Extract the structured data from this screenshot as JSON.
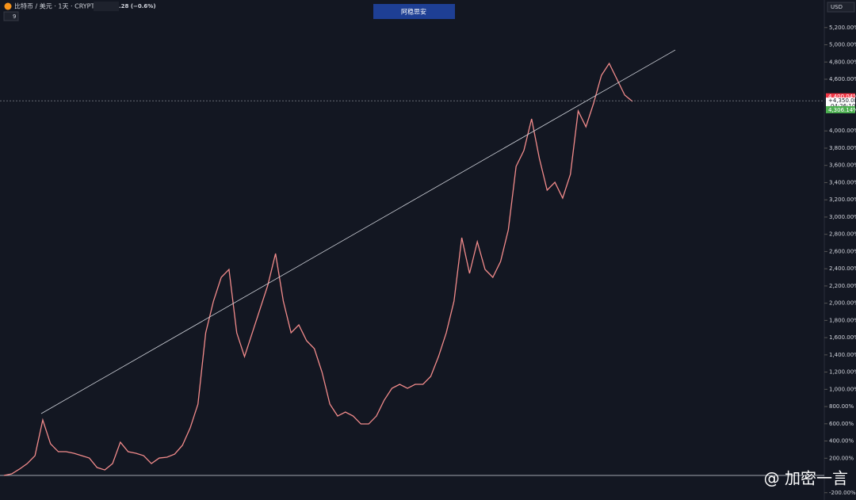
{
  "chart_data": {
    "type": "line",
    "title": "比特币 / 美元 · 1天 · CRYPTO",
    "change": ".28 (−0.6%)",
    "indicator_count": "9",
    "button": "阿稳思安",
    "currency": "USD",
    "watermark": "@ 加密一言",
    "color": "#f28b8b",
    "values": [
      0,
      18,
      74,
      138,
      230,
      644,
      368,
      276,
      276,
      258,
      230,
      202,
      92,
      64,
      138,
      386,
      276,
      258,
      230,
      138,
      202,
      212,
      248,
      350,
      552,
      828,
      1656,
      2024,
      2300,
      2392,
      1656,
      1380,
      1656,
      1932,
      2208,
      2576,
      2024,
      1656,
      1748,
      1564,
      1472,
      1196,
      828,
      690,
      736,
      690,
      598,
      598,
      690,
      874,
      1012,
      1058,
      1012,
      1058,
      1058,
      1150,
      1380,
      1656,
      2024,
      2760,
      2346,
      2714,
      2392,
      2300,
      2484,
      2852,
      3588,
      3772,
      4140,
      3680,
      3312,
      3404,
      3220,
      3496,
      4232,
      4048,
      4324,
      4646,
      4784,
      4600,
      4416,
      4342
    ],
    "trendline": [
      718,
      4940
    ],
    "ylim": [
      -285,
      5520
    ],
    "yticks": [
      {
        "value": -200,
        "label": "-200.00%"
      },
      {
        "value": 200,
        "label": "200.00%"
      },
      {
        "value": 400,
        "label": "400.00%"
      },
      {
        "value": 600,
        "label": "600.00%"
      },
      {
        "value": 800,
        "label": "800.00%"
      },
      {
        "value": 1000,
        "label": "1,000.00%"
      },
      {
        "value": 1200,
        "label": "1,200.00%"
      },
      {
        "value": 1400,
        "label": "1,400.00%"
      },
      {
        "value": 1600,
        "label": "1,600.00%"
      },
      {
        "value": 1800,
        "label": "1,800.00%"
      },
      {
        "value": 2000,
        "label": "2,000.00%"
      },
      {
        "value": 2200,
        "label": "2,200.00%"
      },
      {
        "value": 2400,
        "label": "2,400.00%"
      },
      {
        "value": 2600,
        "label": "2,600.00%"
      },
      {
        "value": 2800,
        "label": "2,800.00%"
      },
      {
        "value": 3000,
        "label": "3,000.00%"
      },
      {
        "value": 3200,
        "label": "3,200.00%"
      },
      {
        "value": 3400,
        "label": "3,400.00%"
      },
      {
        "value": 3600,
        "label": "3,600.00%"
      },
      {
        "value": 3800,
        "label": "3,800.00%"
      },
      {
        "value": 4000,
        "label": "4,000.00%"
      },
      {
        "value": 4600,
        "label": "4,600.00%"
      },
      {
        "value": 4800,
        "label": "4,800.00%"
      },
      {
        "value": 5000,
        "label": "5,000.00%"
      },
      {
        "value": 5200,
        "label": "5,200.00%"
      }
    ],
    "high_label": {
      "value": 4400.04,
      "label": "4,400.04%"
    },
    "last_label": {
      "value": 4350.08,
      "label": "+4,350.08%"
    },
    "countdown": "04:26:10",
    "low_label": {
      "value": 4306.14,
      "label": "4,306.14%"
    }
  }
}
